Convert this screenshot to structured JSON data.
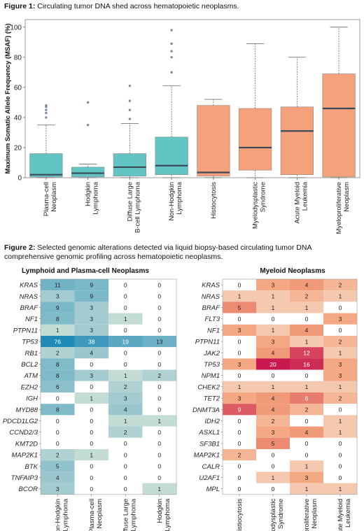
{
  "figure1": {
    "label": "Figure 1:",
    "caption": " Circulating tumor DNA shed across hematopoietic neoplasms.",
    "chart_data": {
      "type": "box",
      "ylabel": "Maximum Somatic Allele Frequency (MSAF) (%)",
      "ylim": [
        0,
        105
      ],
      "yticks": [
        0,
        20,
        40,
        60,
        80,
        100
      ],
      "categories": [
        {
          "line1": "Plasma-cell",
          "line2": "Neoplasm",
          "min": 0,
          "q1": 0.5,
          "median": 2,
          "q3": 16,
          "max": 35,
          "outliers": [
            40,
            43,
            45,
            47,
            48
          ],
          "group": "lymphoid"
        },
        {
          "line1": "Hodgkin",
          "line2": "Lymphoma",
          "min": 0,
          "q1": 0.5,
          "median": 3,
          "q3": 7,
          "max": 9,
          "outliers": [
            35,
            50
          ],
          "group": "lymphoid"
        },
        {
          "line1": "Diffuse Large",
          "line2": "B-cell Lymphoma",
          "min": 0,
          "q1": 1,
          "median": 7,
          "q3": 16,
          "max": 36,
          "outliers": [
            39,
            45,
            51,
            61
          ],
          "group": "lymphoid"
        },
        {
          "line1": "Non-Hodgkin",
          "line2": "Lymphoma",
          "min": 0,
          "q1": 2,
          "median": 8,
          "q3": 27,
          "max": 61,
          "outliers": [
            70,
            80,
            84,
            89,
            98
          ],
          "group": "lymphoid"
        },
        {
          "line1": "Histiocytosis",
          "line2": "",
          "min": 0,
          "q1": 1,
          "median": 3.5,
          "q3": 48,
          "max": 52,
          "outliers": [],
          "group": "myeloid"
        },
        {
          "line1": "Myelodysplastic",
          "line2": "Syndrome",
          "min": 0,
          "q1": 5,
          "median": 20,
          "q3": 46,
          "max": 89,
          "outliers": [],
          "group": "myeloid"
        },
        {
          "line1": "Acute Myeloid",
          "line2": "Leukemia",
          "min": 0,
          "q1": 2,
          "median": 31,
          "q3": 47,
          "max": 80,
          "outliers": [],
          "group": "myeloid"
        },
        {
          "line1": "Myeloproliferative",
          "line2": "Neoplasm",
          "min": 0,
          "q1": 0.5,
          "median": 46,
          "q3": 69,
          "max": 100,
          "outliers": [],
          "group": "myeloid"
        }
      ]
    }
  },
  "figure2": {
    "label": "Figure 2:",
    "caption": " Selected genomic alterations detected via liquid biopsy-based circulating tumor DNA comprehensive genomic profiling across hematopoietic neoplasms."
  },
  "chart_data": [
    {
      "type": "heatmap",
      "title": "Lymphoid and Plasma-cell Neoplasms",
      "rows": [
        "KRAS",
        "NRAS",
        "BRAF",
        "NF1",
        "PTPN11",
        "TP53",
        "RB1",
        "BCL2",
        "ATM",
        "EZH2",
        "IGH",
        "MYD88",
        "PDCD1LG2",
        "CCND2/3",
        "KMT2D",
        "MAP2K1",
        "BTK",
        "TNFAIP3",
        "BCOR"
      ],
      "columns": [
        {
          "line1": "Non-Hodgkin",
          "line2": "Lymphoma"
        },
        {
          "line1": "Plasma-cell",
          "line2": "Neoplasm"
        },
        {
          "line1": "Diffuse Large",
          "line2": "B-cell Lymphoma"
        },
        {
          "line1": "Hodgkin",
          "line2": "Lymphoma"
        }
      ],
      "values": [
        [
          11,
          9,
          0,
          0
        ],
        [
          3,
          9,
          0,
          0
        ],
        [
          9,
          3,
          0,
          0
        ],
        [
          8,
          3,
          1,
          0
        ],
        [
          1,
          3,
          0,
          0
        ],
        [
          76,
          38,
          19,
          13
        ],
        [
          2,
          4,
          0,
          0
        ],
        [
          8,
          0,
          0,
          0
        ],
        [
          8,
          3,
          1,
          2
        ],
        [
          6,
          0,
          2,
          0
        ],
        [
          0,
          1,
          3,
          0
        ],
        [
          8,
          0,
          4,
          0
        ],
        [
          0,
          0,
          1,
          1
        ],
        [
          0,
          0,
          2,
          0
        ],
        [
          0,
          0,
          0,
          0
        ],
        [
          2,
          1,
          0,
          0
        ],
        [
          5,
          0,
          0,
          0
        ],
        [
          4,
          0,
          0,
          0
        ],
        [
          3,
          0,
          0,
          1
        ]
      ]
    },
    {
      "type": "heatmap",
      "title": "Myeloid Neoplasms",
      "rows": [
        "KRAS",
        "NRAS",
        "BRAF",
        "FLT3",
        "NF1",
        "PTPN11",
        "JAK2",
        "TP53",
        "NPM1",
        "CHEK2",
        "TET2",
        "DNMT3A",
        "IDH2",
        "ASXL1",
        "SF3B1",
        "MAP2K1",
        "CALR",
        "U2AF1",
        "MPL"
      ],
      "columns": [
        {
          "line1": "Histiocytosis",
          "line2": ""
        },
        {
          "line1": "Myelodysplastic",
          "line2": "Syndrome"
        },
        {
          "line1": "Myeloproliferative",
          "line2": "Neoplasm"
        },
        {
          "line1": "Acute Myeloid",
          "line2": "Leukemia"
        }
      ],
      "values": [
        [
          0,
          3,
          4,
          2
        ],
        [
          1,
          1,
          2,
          1
        ],
        [
          5,
          1,
          1,
          0
        ],
        [
          0,
          0,
          0,
          3
        ],
        [
          3,
          1,
          4,
          0
        ],
        [
          0,
          3,
          1,
          2
        ],
        [
          0,
          4,
          12,
          1
        ],
        [
          3,
          20,
          16,
          3
        ],
        [
          0,
          0,
          0,
          3
        ],
        [
          1,
          1,
          1,
          1
        ],
        [
          3,
          4,
          6,
          2
        ],
        [
          9,
          4,
          2,
          0
        ],
        [
          0,
          2,
          0,
          1
        ],
        [
          0,
          3,
          4,
          1
        ],
        [
          0,
          5,
          0,
          0
        ],
        [
          2,
          0,
          0,
          0
        ],
        [
          0,
          0,
          1,
          0
        ],
        [
          0,
          1,
          3,
          0
        ],
        [
          0,
          0,
          1,
          1
        ]
      ]
    }
  ],
  "colors": {
    "lymphoid_box": "#62c5c4",
    "myeloid_box": "#f5a27c",
    "median": "#3a4b57",
    "heat_lymph_low": "#e2ebdc",
    "heat_lymph_high": "#1f8ab6",
    "heat_myel_low": "#f6eadb",
    "heat_myel_high": "#c8184f"
  }
}
